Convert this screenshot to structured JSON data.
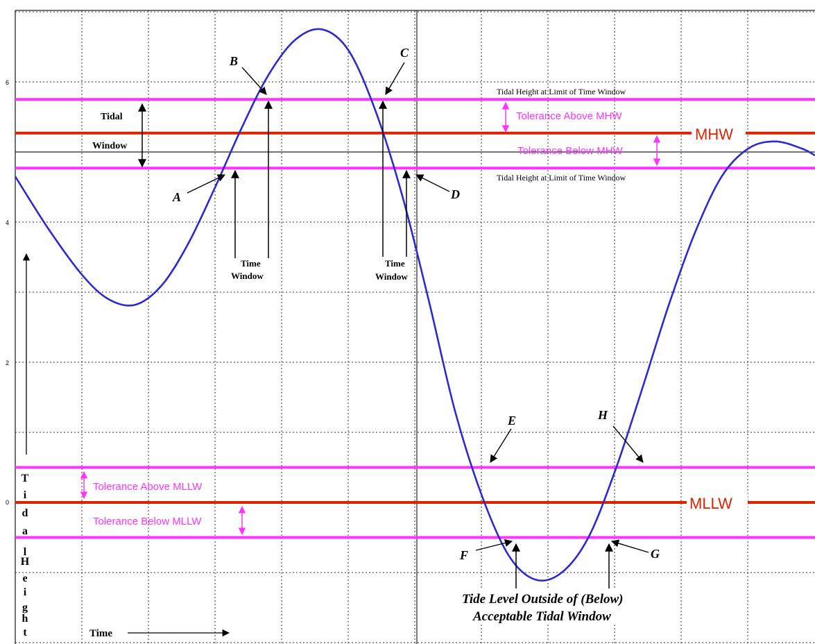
{
  "chart_data": {
    "type": "line",
    "xlabel": "Time",
    "ylabel": "Tidal Height",
    "ylim": [
      -2,
      7
    ],
    "y_ticks": [
      "0",
      "2",
      "4",
      "6"
    ],
    "grid": true,
    "series": [
      {
        "x": [
          0,
          0.5,
          1,
          1.4,
          1.8,
          2.2,
          2.6,
          3.0,
          3.4,
          3.8,
          4.2,
          4.6,
          5.0,
          5.4,
          5.8,
          6.2,
          6.6,
          7.0,
          7.4,
          7.8,
          8.2,
          8.6,
          9.0,
          9.4,
          9.8,
          10.2,
          10.6,
          11.0,
          11.4,
          11.8,
          12.0
        ],
        "y": [
          4.65,
          3.9,
          3.25,
          2.9,
          2.82,
          3.1,
          3.7,
          4.5,
          5.35,
          6.1,
          6.6,
          6.75,
          6.45,
          5.6,
          4.4,
          2.9,
          1.3,
          0.1,
          -0.75,
          -1.1,
          -1.0,
          -0.5,
          0.45,
          1.6,
          2.8,
          3.85,
          4.65,
          5.05,
          5.15,
          5.05,
          4.95
        ],
        "color": "#2a2ad0"
      }
    ],
    "reference_lines": [
      {
        "id": "mhw-upper",
        "y": 5.75,
        "color": "#ff33ff"
      },
      {
        "id": "mhw",
        "y": 5.27,
        "color": "#dd2200",
        "label": "MHW"
      },
      {
        "id": "mhw-mid",
        "y": 5.0,
        "color": "#222222"
      },
      {
        "id": "mhw-lower",
        "y": 4.77,
        "color": "#ff33ff"
      },
      {
        "id": "mllw-upper",
        "y": 0.5,
        "color": "#ff33ff"
      },
      {
        "id": "mllw",
        "y": 0.0,
        "color": "#dd2200",
        "label": "MLLW"
      },
      {
        "id": "mllw-lower",
        "y": -0.5,
        "color": "#ff33ff"
      }
    ]
  },
  "labels": {
    "tidal_window_line1": "Tidal",
    "tidal_window_line2": "Window",
    "limit_top": "Tidal Height at Limit of Time Window",
    "limit_bottom": "Tidal Height at Limit of Time Window",
    "tol_above_mhw": "Tolerance Above MHW",
    "tol_below_mhw": "Tolerance Below MHW",
    "mhw": "MHW",
    "mllw": "MLLW",
    "tol_above_mllw": "Tolerance Above MLLW",
    "tol_below_mllw": "Tolerance Below MLLW",
    "time_window_1a": "Time",
    "time_window_1b": "Window",
    "time_window_2a": "Time",
    "time_window_2b": "Window",
    "pt_a": "A",
    "pt_b": "B",
    "pt_c": "C",
    "pt_d": "D",
    "pt_e": "E",
    "pt_f": "F",
    "pt_g": "G",
    "pt_h": "H",
    "outside_1": "Tide Level Outside of (Below)",
    "outside_2": "Acceptable Tidal Window",
    "time_axis": "Time",
    "vertical_letters": [
      "T",
      "i",
      "d",
      "a",
      "l",
      "",
      "H",
      "e",
      "i",
      "g",
      "h",
      "t"
    ]
  },
  "colors": {
    "grid": "#333333",
    "curve": "#2a2ad0",
    "magenta": "#ff33ff",
    "red": "#dd2200"
  }
}
